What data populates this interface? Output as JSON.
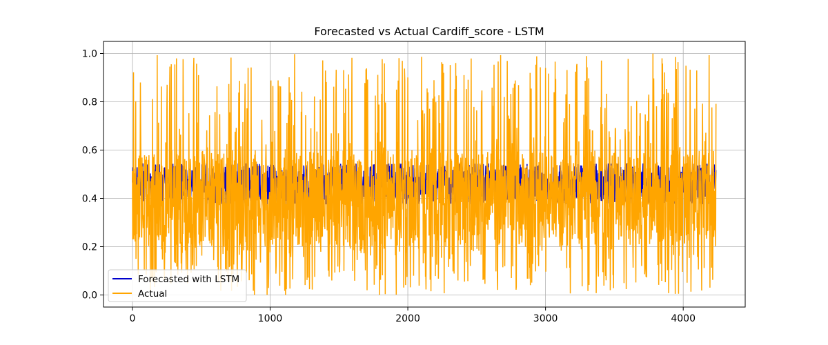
{
  "chart_data": {
    "type": "line",
    "title": "Forecasted vs Actual Cardiff_score - LSTM",
    "xlabel": "",
    "ylabel": "",
    "xlim": [
      -210,
      4450
    ],
    "ylim": [
      -0.05,
      1.05
    ],
    "x_ticks": [
      0,
      1000,
      2000,
      3000,
      4000
    ],
    "x_tick_labels": [
      "0",
      "1000",
      "2000",
      "3000",
      "4000"
    ],
    "y_ticks": [
      0.0,
      0.2,
      0.4,
      0.6,
      0.8,
      1.0
    ],
    "y_tick_labels": [
      "0.0",
      "0.2",
      "0.4",
      "0.6",
      "0.8",
      "1.0"
    ],
    "grid": true,
    "legend": {
      "position": "lower-left"
    },
    "series": [
      {
        "name": "Forecasted with LSTM",
        "color": "#0000cc",
        "n_points": 4240,
        "x_start": 0,
        "x_step": 1,
        "value_range": [
          0.34,
          0.51
        ],
        "typical_level": 0.46
      },
      {
        "name": "Actual",
        "color": "#ffa500",
        "n_points": 4240,
        "x_start": 0,
        "x_step": 1,
        "value_range": [
          0.0,
          1.0
        ],
        "typical_band": [
          0.2,
          0.6
        ]
      }
    ]
  }
}
